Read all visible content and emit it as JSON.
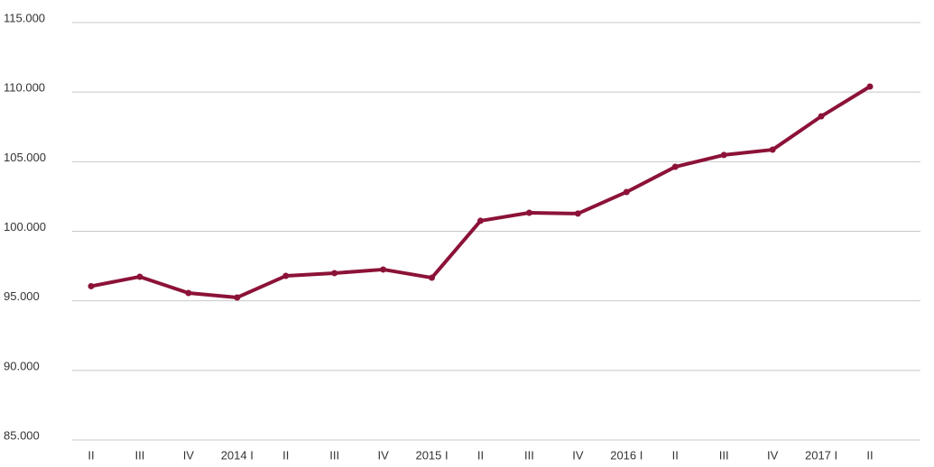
{
  "chart_data": {
    "type": "line",
    "categories": [
      "II",
      "III",
      "IV",
      "2014 I",
      "II",
      "III",
      "IV",
      "2015 I",
      "II",
      "III",
      "IV",
      "2016 I",
      "II",
      "III",
      "IV",
      "2017 I",
      "II"
    ],
    "series": [
      {
        "color": "#8c1238",
        "values": [
          96050,
          96730,
          95560,
          95240,
          96790,
          96990,
          97250,
          96660,
          100750,
          101330,
          101270,
          102820,
          104630,
          105480,
          105860,
          108260,
          110400
        ]
      }
    ],
    "ylim": [
      85000,
      115000
    ],
    "yticks": [
      {
        "value": 85000,
        "label": "85.000"
      },
      {
        "value": 90000,
        "label": "90.000"
      },
      {
        "value": 95000,
        "label": "95.000"
      },
      {
        "value": 100000,
        "label": "100.000"
      },
      {
        "value": 105000,
        "label": "105.000"
      },
      {
        "value": 110000,
        "label": "110.000"
      },
      {
        "value": 115000,
        "label": "115.000"
      }
    ],
    "grid": true
  }
}
